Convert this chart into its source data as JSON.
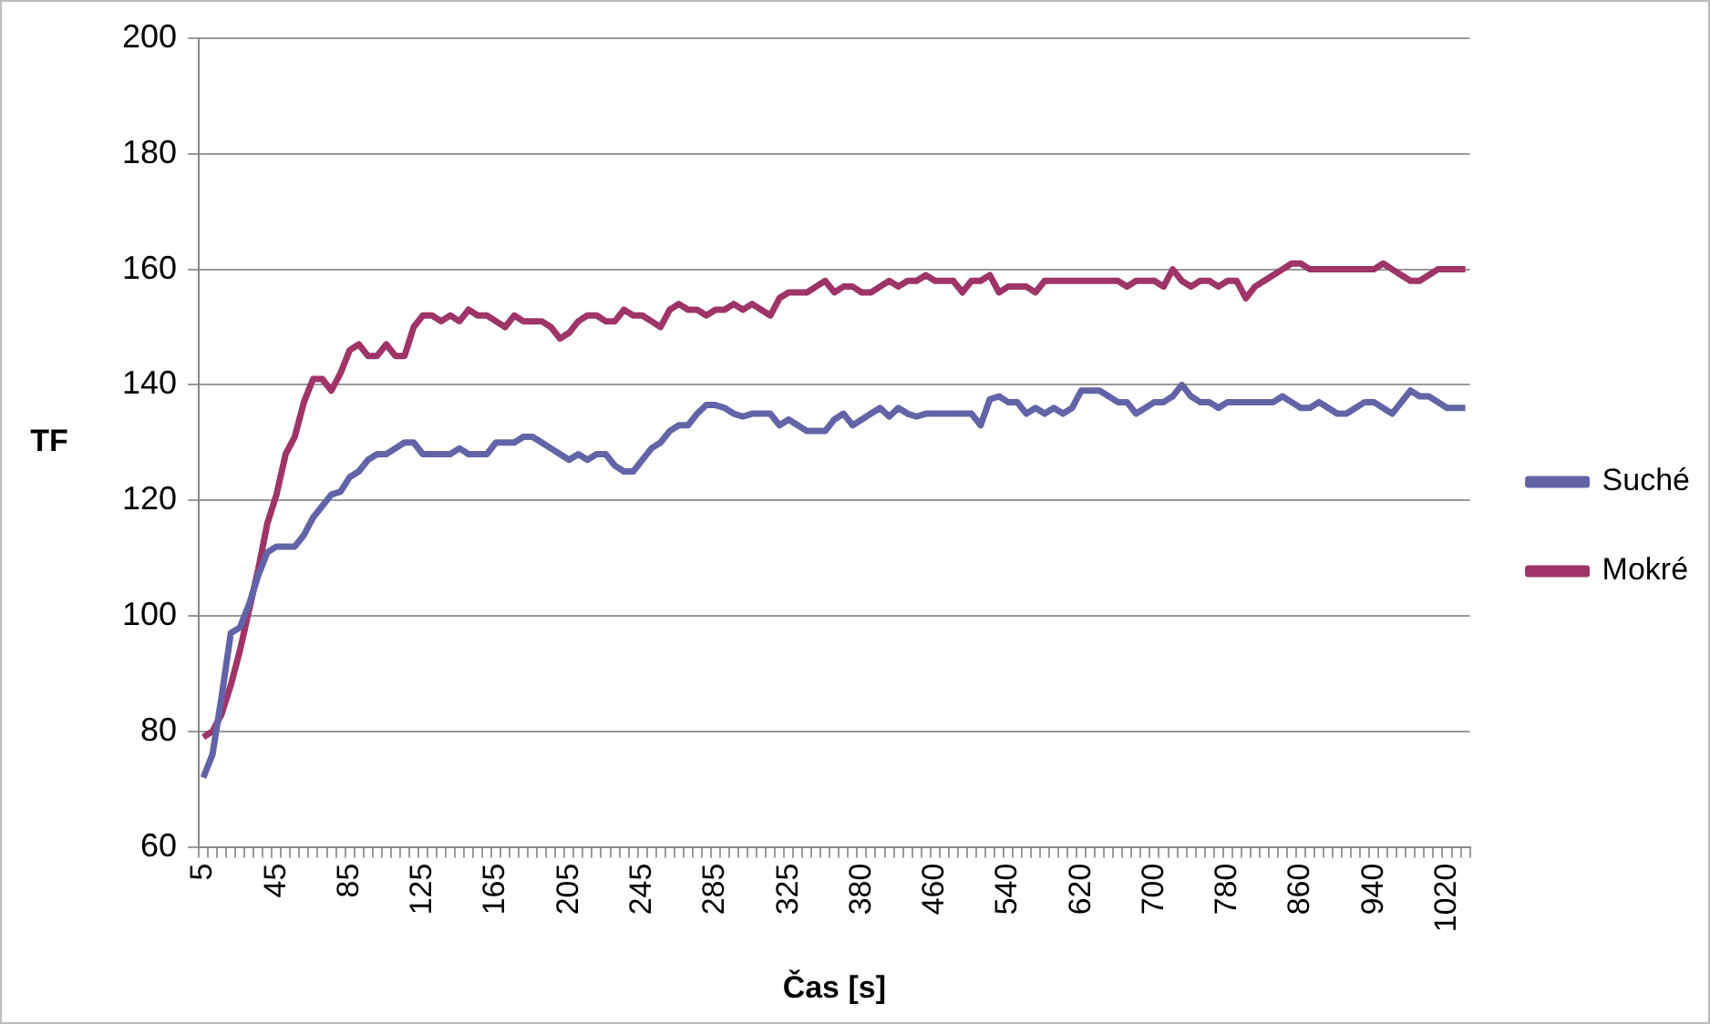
{
  "chart_data": {
    "type": "line",
    "xlabel": "Čas [s]",
    "ylabel": "TF",
    "categories": [
      "5",
      null,
      null,
      null,
      null,
      null,
      null,
      null,
      "45",
      null,
      null,
      null,
      null,
      null,
      null,
      null,
      "85",
      null,
      null,
      null,
      null,
      null,
      null,
      null,
      "125",
      null,
      null,
      null,
      null,
      null,
      null,
      null,
      "165",
      null,
      null,
      null,
      null,
      null,
      null,
      null,
      "205",
      null,
      null,
      null,
      null,
      null,
      null,
      null,
      "245",
      null,
      null,
      null,
      null,
      null,
      null,
      null,
      "285",
      null,
      null,
      null,
      null,
      null,
      null,
      null,
      "325",
      null,
      null,
      null,
      null,
      null,
      null,
      null,
      "380",
      null,
      null,
      null,
      null,
      null,
      null,
      null,
      "460",
      null,
      null,
      null,
      null,
      null,
      null,
      null,
      "540",
      null,
      null,
      null,
      null,
      null,
      null,
      null,
      "620",
      null,
      null,
      null,
      null,
      null,
      null,
      null,
      "700",
      null,
      null,
      null,
      null,
      null,
      null,
      null,
      "780",
      null,
      null,
      null,
      null,
      null,
      null,
      null,
      "860",
      null,
      null,
      null,
      null,
      null,
      null,
      null,
      "940",
      null,
      null,
      null,
      null,
      null,
      null,
      null,
      "1020",
      null,
      null
    ],
    "series": [
      {
        "name": "Suché",
        "color": "#6264a7",
        "values": [
          72,
          76,
          86,
          97,
          98,
          102,
          107,
          111,
          112,
          112,
          112,
          114,
          117,
          119,
          121,
          121.5,
          124,
          125,
          127,
          128,
          128,
          129,
          130,
          130,
          128,
          128,
          128,
          128,
          129,
          128,
          128,
          128,
          130,
          130,
          130,
          131,
          131,
          130,
          129,
          128,
          127,
          128,
          127,
          128,
          128,
          126,
          125,
          125,
          127,
          129,
          130,
          132,
          133,
          133,
          135,
          136.5,
          136.5,
          136,
          135,
          134.5,
          135,
          135,
          135,
          133,
          134,
          133,
          132,
          132,
          132,
          134,
          135,
          133,
          134,
          135,
          136,
          134.5,
          136,
          135,
          134.5,
          135,
          135,
          135,
          135,
          135,
          135,
          133,
          137.5,
          138,
          137,
          137,
          135,
          136,
          135,
          136,
          135,
          136,
          139,
          139,
          139,
          138,
          137,
          137,
          135,
          136,
          137,
          137,
          138,
          140,
          138,
          137,
          137,
          136,
          137,
          137,
          137,
          137,
          137,
          137,
          138,
          137,
          136,
          136,
          137,
          136,
          135,
          135,
          136,
          137,
          137,
          136,
          135,
          137,
          139,
          138,
          138,
          137,
          136,
          136,
          136
        ]
      },
      {
        "name": "Mokré",
        "color": "#9e3468",
        "values": [
          79,
          80,
          83,
          88,
          94,
          101,
          108,
          116,
          121,
          128,
          131,
          137,
          141,
          141,
          139,
          142,
          146,
          147,
          145,
          145,
          147,
          145,
          145,
          150,
          152,
          152,
          151,
          152,
          151,
          153,
          152,
          152,
          151,
          150,
          152,
          151,
          151,
          151,
          150,
          148,
          149,
          151,
          152,
          152,
          151,
          151,
          153,
          152,
          152,
          151,
          150,
          153,
          154,
          153,
          153,
          152,
          153,
          153,
          154,
          153,
          154,
          153,
          152,
          155,
          156,
          156,
          156,
          157,
          158,
          156,
          157,
          157,
          156,
          156,
          157,
          158,
          157,
          158,
          158,
          159,
          158,
          158,
          158,
          156,
          158,
          158,
          159,
          156,
          157,
          157,
          157,
          156,
          158,
          158,
          158,
          158,
          158,
          158,
          158,
          158,
          158,
          157,
          158,
          158,
          158,
          157,
          160,
          158,
          157,
          158,
          158,
          157,
          158,
          158,
          155,
          157,
          158,
          159,
          160,
          161,
          161,
          160,
          160,
          160,
          160,
          160,
          160,
          160,
          160,
          161,
          160,
          159,
          158,
          158,
          159,
          160,
          160,
          160,
          160
        ]
      }
    ],
    "ylim": [
      60,
      200
    ],
    "yticks": [
      60,
      80,
      100,
      120,
      140,
      160,
      180,
      200
    ],
    "grid": "y",
    "legend": "right",
    "marker": "none",
    "line_style": "solid"
  }
}
